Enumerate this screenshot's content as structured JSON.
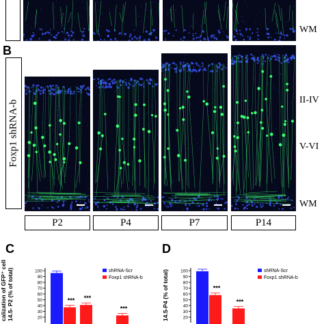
{
  "panel_letters": {
    "b": "B",
    "c": "C",
    "d": "D"
  },
  "row_label": "Foxp1 shRNA-b",
  "layer_labels": {
    "wm_top": "WM",
    "ii_iv": "II-IV",
    "v_vi": "V-VI",
    "wm": "WM"
  },
  "timepoints": [
    "P2",
    "P4",
    "P7",
    "P14"
  ],
  "colors": {
    "blue": "#1a1aff",
    "red": "#ff1a1a",
    "green": "#3cff70",
    "tissue": "#06081c"
  },
  "charts": [
    {
      "id": "C",
      "ylabel_lines": [
        "calization of GFP⁺ cells",
        "14.5- P2  (% of total)"
      ],
      "chart_data": {
        "type": "bar",
        "categories": [
          "",
          "",
          ""
        ],
        "series": [
          {
            "name": "shRNA-Scr",
            "values": [
              96,
              null,
              null
            ]
          },
          {
            "name": "Foxp1 shRNA-b",
            "values": [
              37,
              41,
              23
            ]
          }
        ],
        "significance": [
          "***",
          "***",
          "***"
        ],
        "yticks": [
          "100",
          "90",
          "80",
          "70",
          "60",
          "50",
          "40",
          "30",
          "20"
        ],
        "ylim": [
          20,
          100
        ],
        "legend_position": "top-right"
      }
    },
    {
      "id": "D",
      "ylabel_lines": [
        "calization of GFP⁺ cells",
        "14.5-P4 (% of total)"
      ],
      "chart_data": {
        "type": "bar",
        "categories": [
          "",
          ""
        ],
        "series": [
          {
            "name": "shRNA-Scr",
            "values": [
              99,
              null
            ]
          },
          {
            "name": "Foxp1 shRNA-b",
            "values": [
              58,
              35
            ]
          }
        ],
        "significance": [
          "***",
          "***"
        ],
        "yticks": [
          "100",
          "90",
          "80",
          "70",
          "60",
          "50",
          "40",
          "30",
          "20"
        ],
        "ylim": [
          20,
          100
        ],
        "legend_position": "top-right"
      }
    }
  ]
}
